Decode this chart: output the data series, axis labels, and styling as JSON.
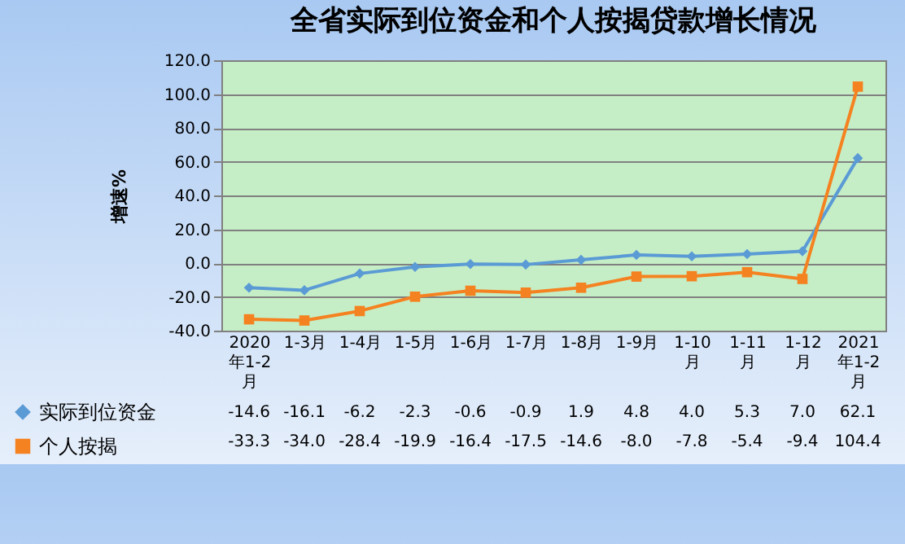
{
  "chart_data": {
    "type": "line",
    "title": "全省实际到位资金和个人按揭贷款增长情况",
    "ylabel": "增速%",
    "categories": [
      "2020年1-2月",
      "1-3月",
      "1-4月",
      "1-5月",
      "1-6月",
      "1-7月",
      "1-8月",
      "1-9月",
      "1-10月",
      "1-11月",
      "1-12月",
      "2021年1-2月"
    ],
    "series": [
      {
        "name": "实际到位资金",
        "color": "#5b9bd5",
        "marker": "diamond",
        "values": [
          -14.6,
          -16.1,
          -6.2,
          -2.3,
          -0.6,
          -0.9,
          1.9,
          4.8,
          4.0,
          5.3,
          7.0,
          62.1
        ],
        "value_labels": [
          "-14.6",
          "-16.1",
          "-6.2",
          "-2.3",
          "-0.6",
          "-0.9",
          "1.9",
          "4.8",
          "4.0",
          "5.3",
          "7.0",
          "62.1"
        ]
      },
      {
        "name": "个人按揭",
        "color": "#f58220",
        "marker": "square",
        "values": [
          -33.3,
          -34.0,
          -28.4,
          -19.9,
          -16.4,
          -17.5,
          -14.6,
          -8.0,
          -7.8,
          -5.4,
          -9.4,
          104.4
        ],
        "value_labels": [
          "-33.3",
          "-34.0",
          "-28.4",
          "-19.9",
          "-16.4",
          "-17.5",
          "-14.6",
          "-8.0",
          "-7.8",
          "-5.4",
          "-9.4",
          "104.4"
        ]
      }
    ],
    "ylim": [
      -40,
      120
    ],
    "yticks": [
      {
        "value": -40,
        "label": "-40.0"
      },
      {
        "value": -20,
        "label": "-20.0"
      },
      {
        "value": 0,
        "label": "0.0"
      },
      {
        "value": 20,
        "label": "20.0"
      },
      {
        "value": 40,
        "label": "40.0"
      },
      {
        "value": 60,
        "label": "60.0"
      },
      {
        "value": 80,
        "label": "80.0"
      },
      {
        "value": 100,
        "label": "100.0"
      },
      {
        "value": 120,
        "label": "120.0"
      }
    ],
    "grid": "y",
    "legend": "bottom left"
  }
}
